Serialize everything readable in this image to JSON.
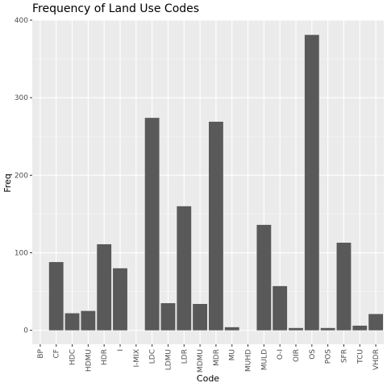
{
  "chart_data": {
    "type": "bar",
    "title": "Frequency of Land Use Codes",
    "xlabel": "Code",
    "ylabel": "Freq",
    "categories": [
      "BP",
      "CF",
      "HDC",
      "HDMU",
      "HDR",
      "I",
      "I-MIX",
      "LDC",
      "LDMU",
      "LDR",
      "MDMU",
      "MDR",
      "MU",
      "MUHD",
      "MULD",
      "O-I",
      "OIR",
      "OS",
      "POS",
      "SFR",
      "TCU",
      "VHDR"
    ],
    "values": [
      0,
      88,
      22,
      25,
      111,
      80,
      0,
      274,
      35,
      160,
      34,
      269,
      4,
      0,
      136,
      57,
      3,
      381,
      3,
      113,
      6,
      21
    ],
    "ylim": [
      -18,
      400
    ],
    "yticks": [
      0,
      100,
      200,
      300,
      400
    ],
    "grid": true,
    "legend": "none",
    "colors": {
      "panel": "#ebebeb",
      "grid_major": "#ffffff",
      "grid_minor": "#f5f5f5",
      "bar": "#595959",
      "tick": "#333333"
    }
  }
}
